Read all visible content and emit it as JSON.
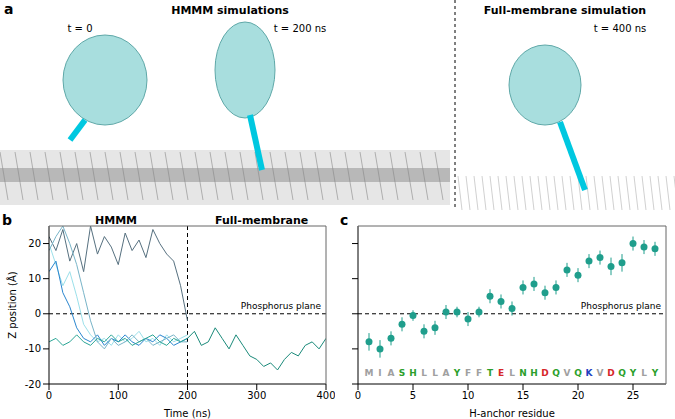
{
  "panels": {
    "a": {
      "label": "a",
      "left_title": "HMMM simulations",
      "right_title": "Full-membrane simulation",
      "frames": [
        "t = 0",
        "t = 200 ns",
        "t = 400 ns"
      ]
    }
  },
  "chart_data": [
    {
      "type": "line",
      "panel": "b",
      "x_label": "Time (ns)",
      "y_label": "Z position (Å)",
      "region_labels": [
        "HMMM",
        "Full-membrane"
      ],
      "vlines": [
        200
      ],
      "hlines": [
        {
          "y": 0,
          "label": "Phosphorus plane"
        }
      ],
      "x": [
        0,
        10,
        20,
        30,
        40,
        50,
        60,
        70,
        80,
        90,
        100,
        110,
        120,
        130,
        140,
        150,
        160,
        170,
        180,
        190,
        200,
        210,
        220,
        230,
        240,
        250,
        260,
        270,
        280,
        290,
        300,
        310,
        320,
        330,
        340,
        350,
        360,
        370,
        380,
        390,
        400
      ],
      "xlim": [
        0,
        400
      ],
      "xticks": [
        0,
        100,
        200,
        300,
        400
      ],
      "ylim": [
        -20,
        25
      ],
      "yticks": [
        -20,
        -10,
        0,
        10,
        20
      ],
      "series": [
        {
          "color": "#56707f",
          "values": [
            22,
            18,
            24,
            15,
            20,
            12,
            25,
            17,
            22,
            19,
            14,
            23,
            18,
            21,
            16,
            24,
            20,
            17,
            15,
            8,
            -2,
            null,
            null,
            null,
            null,
            null,
            null,
            null,
            null,
            null,
            null,
            null,
            null,
            null,
            null,
            null,
            null,
            null,
            null,
            null,
            null
          ]
        },
        {
          "color": "#9be0ea",
          "values": [
            20,
            14,
            8,
            12,
            5,
            -3,
            -6,
            -8,
            -7,
            -9,
            -6,
            -8,
            -7,
            -5,
            -8,
            -7,
            -9,
            -6,
            -8,
            -7,
            -6,
            null,
            null,
            null,
            null,
            null,
            null,
            null,
            null,
            null,
            null,
            null,
            null,
            null,
            null,
            null,
            null,
            null,
            null,
            null,
            null
          ]
        },
        {
          "color": "#2a86cf",
          "values": [
            12,
            15,
            6,
            2,
            -4,
            -7,
            -8,
            -6,
            -9,
            -7,
            -8,
            -6,
            -8,
            -9,
            -7,
            -8,
            -6,
            -7,
            -9,
            -8,
            -7,
            null,
            null,
            null,
            null,
            null,
            null,
            null,
            null,
            null,
            null,
            null,
            null,
            null,
            null,
            null,
            null,
            null,
            null,
            null,
            null
          ]
        },
        {
          "color": "#78b4c8",
          "values": [
            18,
            22,
            25,
            20,
            14,
            6,
            -2,
            -8,
            -10,
            -7,
            -9,
            -8,
            -6,
            -8,
            -7,
            -9,
            -8,
            -7,
            -6,
            -8,
            -8,
            null,
            null,
            null,
            null,
            null,
            null,
            null,
            null,
            null,
            null,
            null,
            null,
            null,
            null,
            null,
            null,
            null,
            null,
            null,
            null
          ]
        },
        {
          "color": "#2aa595",
          "values": [
            -8,
            -7,
            -9,
            -8,
            -6,
            -8,
            -9,
            -7,
            -8,
            -6,
            -8,
            -7,
            -9,
            -8,
            -7,
            -6,
            -8,
            -9,
            -7,
            -8,
            -7,
            null,
            null,
            null,
            null,
            null,
            null,
            null,
            null,
            null,
            null,
            null,
            null,
            null,
            null,
            null,
            null,
            null,
            null,
            null,
            null
          ]
        },
        {
          "color": "#1a8a7a",
          "values": [
            null,
            null,
            null,
            null,
            null,
            null,
            null,
            null,
            null,
            null,
            null,
            null,
            null,
            null,
            null,
            null,
            null,
            null,
            null,
            null,
            -7,
            -5,
            -9,
            -8,
            -4,
            -7,
            -10,
            -6,
            -9,
            -12,
            -13,
            -15,
            -14,
            -16,
            -13,
            -11,
            -12,
            -9,
            -8,
            -10,
            -7
          ]
        }
      ]
    },
    {
      "type": "scatter",
      "panel": "c",
      "x_label": "H-anchor residue",
      "tick_labels": "x",
      "marker": "circle",
      "color": "#1f9e8c",
      "hlines": [
        {
          "y": 0,
          "label": "Phosphorus plane"
        }
      ],
      "x": [
        1,
        2,
        3,
        4,
        5,
        6,
        7,
        8,
        9,
        10,
        11,
        12,
        13,
        14,
        15,
        16,
        17,
        18,
        19,
        20,
        21,
        22,
        23,
        24,
        25,
        26,
        27
      ],
      "values": [
        -8,
        -10,
        -7,
        -3,
        -0.5,
        -5,
        -4,
        0.5,
        0.5,
        -1.5,
        0.5,
        5,
        3.5,
        1.5,
        7.5,
        8.5,
        6,
        7.5,
        12.5,
        11,
        15,
        16,
        13.5,
        14.5,
        20,
        19,
        18.5
      ],
      "errors": [
        2.5,
        2.5,
        2,
        2,
        1.5,
        2,
        2,
        2,
        1.5,
        2,
        1.5,
        2,
        2,
        2,
        2,
        2,
        2,
        2,
        2,
        2,
        2,
        2,
        2.5,
        2.5,
        2,
        2,
        2
      ],
      "residues": [
        "M",
        "I",
        "A",
        "S",
        "H",
        "L",
        "L",
        "A",
        "Y",
        "F",
        "F",
        "T",
        "E",
        "L",
        "N",
        "H",
        "D",
        "Q",
        "V",
        "Q",
        "K",
        "V",
        "D",
        "Q",
        "Y",
        "L",
        "Y"
      ],
      "residue_colors": [
        "#a0a0a0",
        "#a0a0a0",
        "#a0a0a0",
        "#2ca02c",
        "#2ca02c",
        "#a0a0a0",
        "#a0a0a0",
        "#a0a0a0",
        "#2ca02c",
        "#a0a0a0",
        "#a0a0a0",
        "#2ca02c",
        "#d62728",
        "#a0a0a0",
        "#2ca02c",
        "#2ca02c",
        "#d62728",
        "#2ca02c",
        "#a0a0a0",
        "#2ca02c",
        "#1f3fbf",
        "#a0a0a0",
        "#d62728",
        "#2ca02c",
        "#2ca02c",
        "#a0a0a0",
        "#2ca02c"
      ],
      "xlim": [
        0,
        28
      ],
      "xticks": [
        0,
        5,
        10,
        15,
        20,
        25
      ],
      "ylim": [
        -20,
        25
      ],
      "yticks": [
        -20,
        -10,
        0,
        10,
        20
      ]
    }
  ]
}
